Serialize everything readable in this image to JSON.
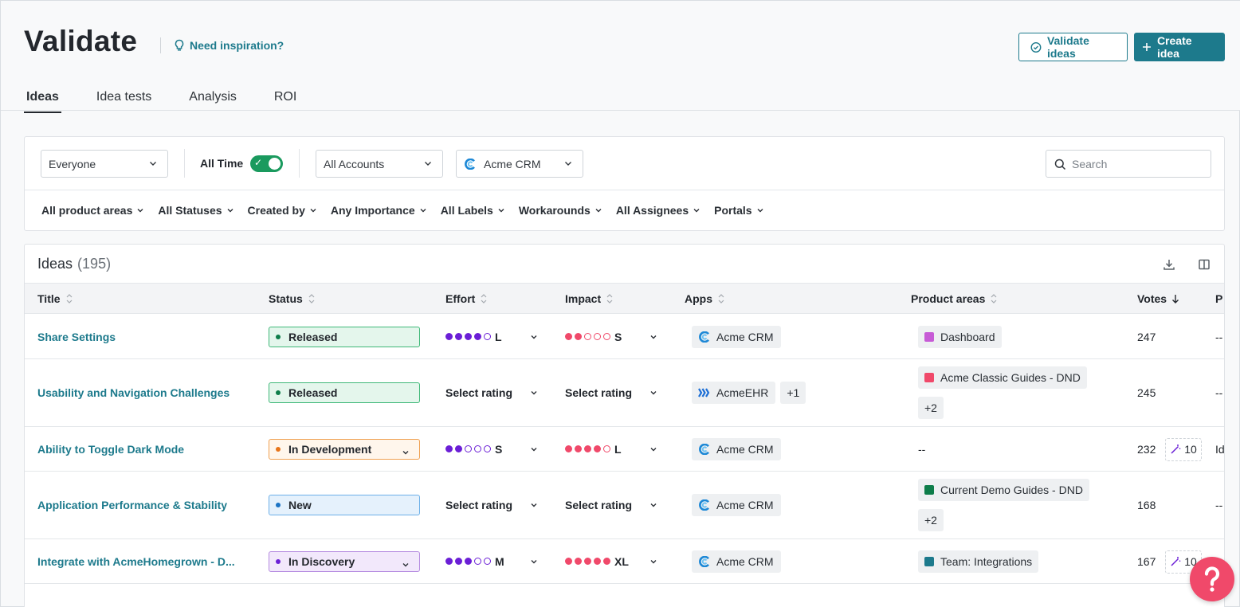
{
  "header": {
    "title": "Validate",
    "inspiration_label": "Need inspiration?",
    "validate_button": "Validate ideas",
    "create_button": "Create idea",
    "tabs": [
      {
        "label": "Ideas",
        "active": true
      },
      {
        "label": "Idea tests",
        "active": false
      },
      {
        "label": "Analysis",
        "active": false
      },
      {
        "label": "ROI",
        "active": false
      }
    ]
  },
  "filters": {
    "audience": "Everyone",
    "all_time_label": "All Time",
    "all_time_on": true,
    "accounts": "All Accounts",
    "app": "Acme CRM",
    "search_placeholder": "Search",
    "pills": [
      "All product areas",
      "All Statuses",
      "Created by",
      "Any Importance",
      "All Labels",
      "Workarounds",
      "All Assignees",
      "Portals"
    ]
  },
  "table": {
    "title": "Ideas",
    "count": "(195)",
    "columns": {
      "title": "Title",
      "status": "Status",
      "effort": "Effort",
      "impact": "Impact",
      "apps": "Apps",
      "product_areas": "Product areas",
      "votes": "Votes",
      "more": "P"
    },
    "rows": [
      {
        "title": "Share Settings",
        "status": "Released",
        "status_kind": "released",
        "effort": {
          "filled": 4,
          "label": "L"
        },
        "impact": {
          "filled": 2,
          "label": "S"
        },
        "app": "Acme CRM",
        "app_logo": "acme-crm",
        "app_more": "",
        "areas": [
          {
            "name": "Dashboard",
            "color": "#c75bd6"
          }
        ],
        "areas_more": "",
        "votes": "247",
        "ai_count": "",
        "extra": "--"
      },
      {
        "title": "Usability and Navigation Challenges",
        "status": "Released",
        "status_kind": "released",
        "effort": {
          "filled": 0,
          "label": "Select rating"
        },
        "impact": {
          "filled": 0,
          "label": "Select rating"
        },
        "app": "AcmeEHR",
        "app_logo": "acme-ehr",
        "app_more": "+1",
        "areas": [
          {
            "name": "Acme Classic Guides - DND",
            "color": "#f0496a"
          }
        ],
        "areas_more": "+2",
        "votes": "245",
        "ai_count": "",
        "extra": "--"
      },
      {
        "title": "Ability to Toggle Dark Mode",
        "status": "In Development",
        "status_kind": "development",
        "effort": {
          "filled": 2,
          "label": "S"
        },
        "impact": {
          "filled": 4,
          "label": "L"
        },
        "app": "Acme CRM",
        "app_logo": "acme-crm",
        "app_more": "",
        "areas": [],
        "areas_empty": "--",
        "areas_more": "",
        "votes": "232",
        "ai_count": "10",
        "extra": "Id"
      },
      {
        "title": "Application Performance & Stability",
        "status": "New",
        "status_kind": "new",
        "effort": {
          "filled": 0,
          "label": "Select rating"
        },
        "impact": {
          "filled": 0,
          "label": "Select rating"
        },
        "app": "Acme CRM",
        "app_logo": "acme-crm",
        "app_more": "",
        "areas": [
          {
            "name": "Current Demo Guides - DND",
            "color": "#0e7d4a"
          }
        ],
        "areas_more": "+2",
        "votes": "168",
        "ai_count": "",
        "extra": "--"
      },
      {
        "title": "Integrate with AcmeHomegrown - D...",
        "status": "In Discovery",
        "status_kind": "discovery",
        "effort": {
          "filled": 3,
          "label": "M"
        },
        "impact": {
          "filled": 5,
          "label": "XL"
        },
        "app": "Acme CRM",
        "app_logo": "acme-crm",
        "app_more": "",
        "areas": [
          {
            "name": "Team: Integrations",
            "color": "#1d7a8c"
          }
        ],
        "areas_more": "",
        "votes": "167",
        "ai_count": "10",
        "extra": ""
      }
    ]
  },
  "colors": {
    "accent": "#1d7a8c",
    "effort": "#6b1fd6",
    "impact": "#f0496a",
    "toggle": "#1a9a5e",
    "help": "#f0496a"
  }
}
